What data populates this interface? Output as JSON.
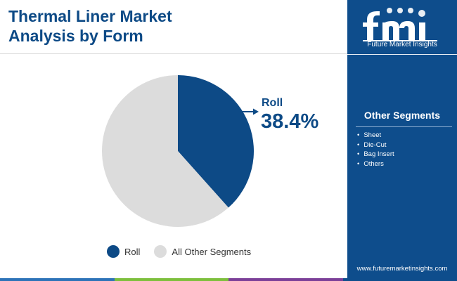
{
  "title": {
    "line1": "Thermal Liner Market",
    "line2": "Analysis by Form"
  },
  "chart_data": {
    "type": "pie",
    "slices": [
      {
        "name": "Roll",
        "value": 38.4,
        "color": "#0d4a86"
      },
      {
        "name": "All Other Segments",
        "value": 61.6,
        "color": "#dcdcdc"
      }
    ],
    "callout": {
      "label": "Roll",
      "value": "38.4%"
    }
  },
  "legend": [
    {
      "label": "Roll",
      "color": "#0d4a86"
    },
    {
      "label": "All Other Segments",
      "color": "#dcdcdc"
    }
  ],
  "sidebar": {
    "brand_tagline": "Future Market Insights",
    "segments_title": "Other Segments",
    "segments": [
      "Sheet",
      "Die-Cut",
      "Bag Insert",
      "Others"
    ],
    "url": "www.futuremarketinsights.com",
    "background": "#0e4d8c"
  },
  "bottom_bar_colors": [
    "#2d73b8",
    "#7dbf3c",
    "#7b3f98",
    "#0e4d8c"
  ]
}
